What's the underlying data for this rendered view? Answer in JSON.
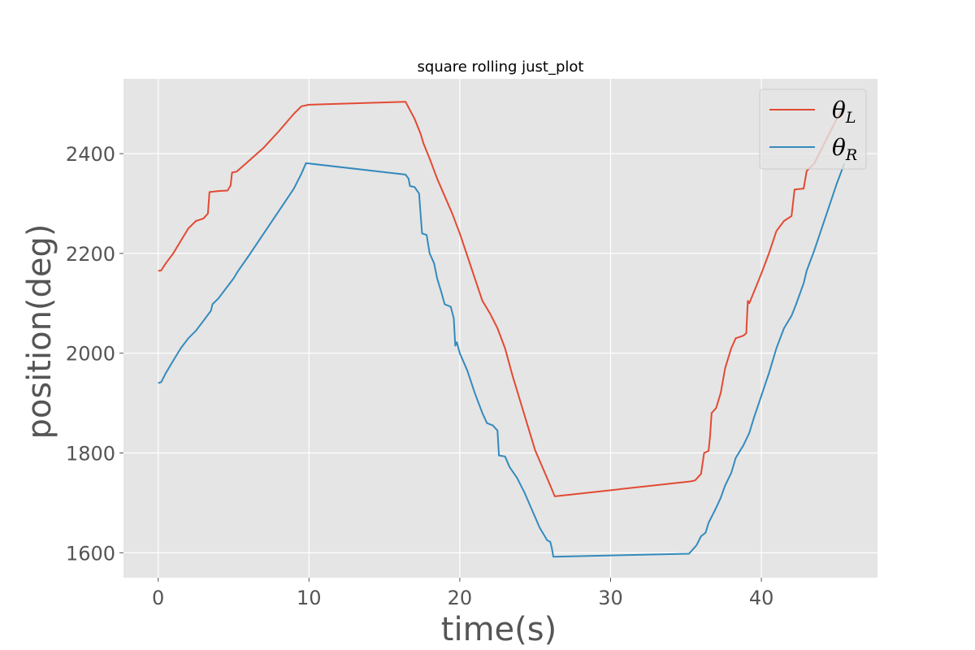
{
  "chart_data": {
    "type": "line",
    "title": "square rolling just_plot",
    "xlabel": "time(s)",
    "ylabel": "position(deg)",
    "xlim": [
      -2.3,
      47.7
    ],
    "ylim": [
      1550,
      2550
    ],
    "xticks": [
      0,
      10,
      20,
      30,
      40
    ],
    "yticks": [
      1600,
      1800,
      2000,
      2200,
      2400
    ],
    "xtick_labels": [
      "0",
      "10",
      "20",
      "30",
      "40"
    ],
    "ytick_labels": [
      "1600",
      "1800",
      "2000",
      "2200",
      "2400"
    ],
    "grid": true,
    "style": "ggplot",
    "background": "#e5e5e5",
    "legend_position": "upper-right",
    "series": [
      {
        "name": "θ",
        "sub": "L",
        "color": "#e24a33",
        "points": [
          [
            0.0,
            2165
          ],
          [
            0.2,
            2166
          ],
          [
            0.5,
            2180
          ],
          [
            1.0,
            2200
          ],
          [
            1.5,
            2225
          ],
          [
            2.0,
            2250
          ],
          [
            2.5,
            2265
          ],
          [
            3.0,
            2270
          ],
          [
            3.3,
            2280
          ],
          [
            3.4,
            2323
          ],
          [
            4.0,
            2325
          ],
          [
            4.6,
            2326
          ],
          [
            4.8,
            2336
          ],
          [
            4.9,
            2362
          ],
          [
            5.2,
            2364
          ],
          [
            6.0,
            2385
          ],
          [
            7.0,
            2412
          ],
          [
            8.0,
            2445
          ],
          [
            9.0,
            2480
          ],
          [
            9.5,
            2495
          ],
          [
            10.0,
            2498
          ],
          [
            16.4,
            2504
          ],
          [
            17.0,
            2470
          ],
          [
            17.4,
            2440
          ],
          [
            17.6,
            2420
          ],
          [
            18.0,
            2390
          ],
          [
            18.5,
            2350
          ],
          [
            19.0,
            2315
          ],
          [
            19.5,
            2280
          ],
          [
            20.0,
            2240
          ],
          [
            20.5,
            2195
          ],
          [
            21.0,
            2150
          ],
          [
            21.5,
            2105
          ],
          [
            22.0,
            2080
          ],
          [
            22.5,
            2050
          ],
          [
            23.0,
            2010
          ],
          [
            23.5,
            1955
          ],
          [
            24.0,
            1905
          ],
          [
            24.5,
            1855
          ],
          [
            25.0,
            1805
          ],
          [
            25.5,
            1770
          ],
          [
            26.0,
            1735
          ],
          [
            26.3,
            1713
          ],
          [
            35.3,
            1743
          ],
          [
            35.6,
            1745
          ],
          [
            36.0,
            1758
          ],
          [
            36.2,
            1800
          ],
          [
            36.5,
            1804
          ],
          [
            36.6,
            1835
          ],
          [
            36.7,
            1880
          ],
          [
            37.0,
            1890
          ],
          [
            37.3,
            1920
          ],
          [
            37.6,
            1970
          ],
          [
            38.0,
            2010
          ],
          [
            38.3,
            2030
          ],
          [
            38.8,
            2035
          ],
          [
            39.0,
            2040
          ],
          [
            39.1,
            2105
          ],
          [
            39.2,
            2100
          ],
          [
            39.6,
            2130
          ],
          [
            40.0,
            2160
          ],
          [
            40.5,
            2200
          ],
          [
            41.0,
            2245
          ],
          [
            41.5,
            2265
          ],
          [
            42.0,
            2275
          ],
          [
            42.2,
            2328
          ],
          [
            42.8,
            2330
          ],
          [
            43.0,
            2365
          ],
          [
            43.5,
            2380
          ],
          [
            44.0,
            2410
          ],
          [
            44.5,
            2440
          ],
          [
            45.0,
            2470
          ],
          [
            45.4,
            2490
          ]
        ]
      },
      {
        "name": "θ",
        "sub": "R",
        "color": "#348abd",
        "points": [
          [
            0.0,
            1940
          ],
          [
            0.2,
            1942
          ],
          [
            0.5,
            1960
          ],
          [
            1.0,
            1985
          ],
          [
            1.5,
            2010
          ],
          [
            2.0,
            2030
          ],
          [
            2.5,
            2045
          ],
          [
            3.0,
            2065
          ],
          [
            3.5,
            2085
          ],
          [
            3.6,
            2098
          ],
          [
            4.0,
            2110
          ],
          [
            4.5,
            2130
          ],
          [
            5.0,
            2150
          ],
          [
            5.3,
            2165
          ],
          [
            6.0,
            2195
          ],
          [
            7.0,
            2240
          ],
          [
            8.0,
            2285
          ],
          [
            9.0,
            2330
          ],
          [
            9.5,
            2360
          ],
          [
            9.8,
            2381
          ],
          [
            16.4,
            2358
          ],
          [
            16.6,
            2350
          ],
          [
            16.7,
            2335
          ],
          [
            17.0,
            2333
          ],
          [
            17.3,
            2320
          ],
          [
            17.4,
            2280
          ],
          [
            17.5,
            2240
          ],
          [
            17.8,
            2237
          ],
          [
            18.0,
            2200
          ],
          [
            18.3,
            2180
          ],
          [
            18.5,
            2150
          ],
          [
            18.8,
            2120
          ],
          [
            19.0,
            2098
          ],
          [
            19.4,
            2093
          ],
          [
            19.6,
            2070
          ],
          [
            19.7,
            2015
          ],
          [
            19.8,
            2022
          ],
          [
            20.0,
            2000
          ],
          [
            20.5,
            1965
          ],
          [
            21.0,
            1920
          ],
          [
            21.5,
            1880
          ],
          [
            21.8,
            1860
          ],
          [
            22.2,
            1855
          ],
          [
            22.5,
            1845
          ],
          [
            22.6,
            1795
          ],
          [
            23.0,
            1793
          ],
          [
            23.3,
            1772
          ],
          [
            23.8,
            1750
          ],
          [
            24.3,
            1720
          ],
          [
            24.8,
            1685
          ],
          [
            25.3,
            1650
          ],
          [
            25.8,
            1625
          ],
          [
            26.0,
            1622
          ],
          [
            26.1,
            1610
          ],
          [
            26.2,
            1592
          ],
          [
            35.2,
            1598
          ],
          [
            35.7,
            1615
          ],
          [
            36.0,
            1633
          ],
          [
            36.3,
            1640
          ],
          [
            36.5,
            1660
          ],
          [
            37.0,
            1690
          ],
          [
            37.3,
            1710
          ],
          [
            37.6,
            1735
          ],
          [
            38.0,
            1760
          ],
          [
            38.3,
            1790
          ],
          [
            38.8,
            1815
          ],
          [
            39.2,
            1840
          ],
          [
            39.5,
            1870
          ],
          [
            40.0,
            1915
          ],
          [
            40.5,
            1960
          ],
          [
            41.0,
            2010
          ],
          [
            41.5,
            2050
          ],
          [
            42.0,
            2075
          ],
          [
            42.3,
            2098
          ],
          [
            42.8,
            2140
          ],
          [
            43.0,
            2165
          ],
          [
            43.5,
            2205
          ],
          [
            44.0,
            2250
          ],
          [
            44.5,
            2295
          ],
          [
            45.0,
            2340
          ],
          [
            45.5,
            2380
          ]
        ]
      }
    ]
  }
}
